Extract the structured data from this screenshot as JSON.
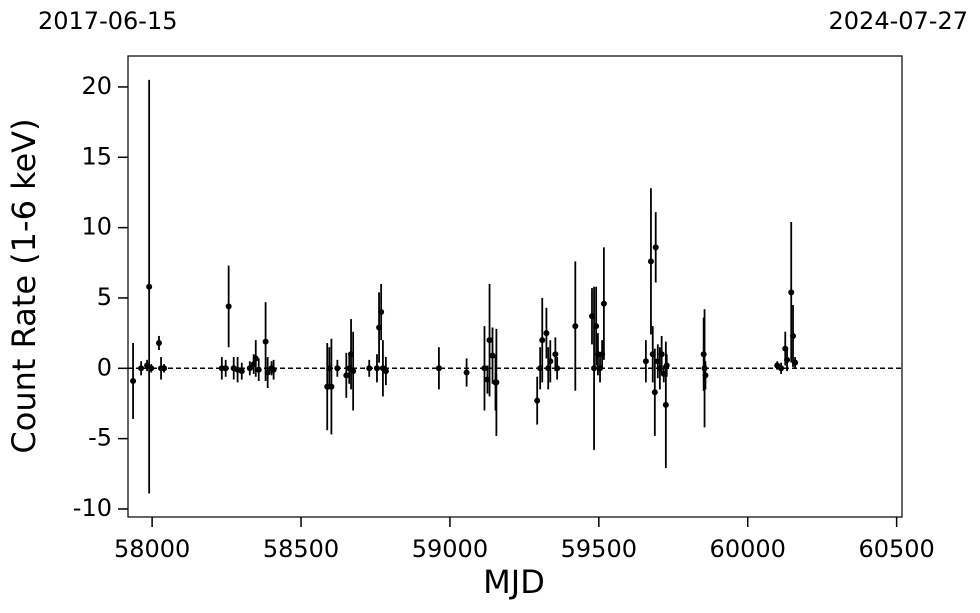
{
  "chart_data": {
    "type": "errorbar",
    "top_labels": [
      "2017-06-15",
      "2024-07-27"
    ],
    "xlabel": "MJD",
    "ylabel": "Count Rate (1-6 keV)",
    "xlim": [
      57919,
      60518
    ],
    "ylim": [
      -10.57,
      22.2
    ],
    "xticks": [
      58000,
      58500,
      59000,
      59500,
      60000,
      60500
    ],
    "yticks": [
      -10,
      -5,
      0,
      5,
      10,
      15,
      20
    ],
    "hline": 0,
    "color": "#000000",
    "x": [
      57936,
      57963,
      57983,
      57990,
      57997,
      58023,
      58030,
      58040,
      58234,
      58247,
      58257,
      58274,
      58287,
      58301,
      58328,
      58341,
      58348,
      58358,
      58381,
      58388,
      58401,
      58408,
      58588,
      58595,
      58602,
      58622,
      58652,
      58662,
      58668,
      58675,
      58729,
      58755,
      58762,
      58769,
      58775,
      58785,
      58963,
      59056,
      59116,
      59126,
      59133,
      59143,
      59153,
      59156,
      59293,
      59303,
      59310,
      59324,
      59330,
      59337,
      59354,
      59360,
      59421,
      59477,
      59484,
      59491,
      59497,
      59504,
      59511,
      59517,
      59658,
      59675,
      59681,
      59688,
      59691,
      59698,
      59705,
      59711,
      59718,
      59725,
      59728,
      59852,
      59855,
      59858,
      60099,
      60112,
      60126,
      60132,
      60146,
      60152,
      60159
    ],
    "values": [
      -0.9,
      0.0,
      0.2,
      5.8,
      0.0,
      1.8,
      0.0,
      0.0,
      0.0,
      0.0,
      4.4,
      0.0,
      -0.1,
      -0.2,
      0.0,
      0.3,
      0.7,
      -0.1,
      1.9,
      -0.3,
      0.0,
      -0.1,
      -1.3,
      0.0,
      -1.3,
      0.0,
      -0.5,
      0.0,
      1.0,
      -0.2,
      0.0,
      0.0,
      2.9,
      4.0,
      0.0,
      -0.2,
      0.0,
      -0.3,
      0.0,
      -0.8,
      2.0,
      0.9,
      -1.0,
      -1.0,
      -2.3,
      0.0,
      2.0,
      2.5,
      0.0,
      0.5,
      1.0,
      0.0,
      3.0,
      3.7,
      0.0,
      3.0,
      1.0,
      0.0,
      1.0,
      4.6,
      0.5,
      7.6,
      1.0,
      -1.7,
      8.6,
      0.5,
      0.0,
      1.0,
      -0.4,
      -2.6,
      0.2,
      1.0,
      0.0,
      -0.5,
      0.2,
      0.0,
      1.4,
      0.6,
      5.4,
      2.3,
      0.4
    ],
    "errors": [
      2.7,
      0.5,
      0.4,
      14.7,
      0.3,
      0.5,
      0.8,
      0.3,
      0.8,
      0.6,
      2.9,
      0.8,
      0.9,
      0.6,
      0.5,
      0.7,
      1.3,
      0.8,
      2.8,
      1.1,
      0.5,
      0.7,
      3.1,
      1.5,
      3.4,
      0.6,
      1.6,
      1.1,
      2.5,
      2.8,
      0.6,
      1.0,
      2.5,
      2.0,
      2.0,
      1.0,
      1.5,
      1.0,
      3.0,
      1.0,
      4.0,
      2.0,
      2.0,
      3.8,
      1.7,
      1.5,
      3.0,
      1.8,
      1.5,
      1.5,
      1.2,
      0.8,
      4.6,
      2.0,
      5.8,
      2.8,
      1.5,
      1.0,
      1.0,
      4.0,
      1.5,
      5.2,
      2.0,
      3.1,
      2.5,
      1.2,
      1.5,
      1.3,
      0.6,
      4.5,
      0.8,
      2.6,
      4.2,
      1.0,
      0.3,
      0.4,
      1.2,
      0.8,
      5.0,
      2.2,
      0.4
    ]
  }
}
